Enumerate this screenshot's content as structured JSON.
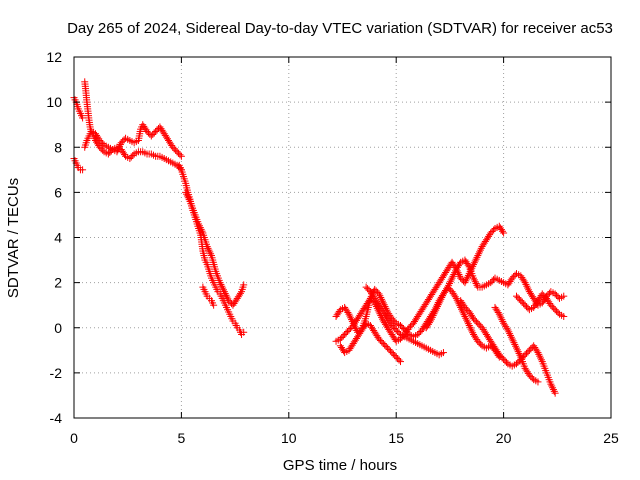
{
  "chart_data": {
    "type": "scatter",
    "title": "Day 265 of 2024, Sidereal Day-to-day VTEC variation (SDTVAR) for receiver ac53",
    "xlabel": "GPS time / hours",
    "ylabel": "SDTVAR / TECUs",
    "xlim": [
      0,
      25
    ],
    "ylim": [
      -4,
      12
    ],
    "xticks": [
      "0",
      "5",
      "10",
      "15",
      "20",
      "25"
    ],
    "yticks": [
      "-4",
      "-2",
      "0",
      "2",
      "4",
      "6",
      "8",
      "10",
      "12"
    ],
    "grid": true,
    "marker": "+",
    "series_color": "#ff0000",
    "segments": [
      {
        "x": [
          0.0,
          0.1,
          0.2,
          0.3,
          0.4
        ],
        "y": [
          10.2,
          10.0,
          9.7,
          9.5,
          9.3
        ]
      },
      {
        "x": [
          0.0,
          0.1,
          0.2,
          0.3,
          0.4
        ],
        "y": [
          7.5,
          7.3,
          7.1,
          7.0,
          7.0
        ]
      },
      {
        "x": [
          0.5,
          0.55,
          0.6,
          0.65,
          0.7,
          0.75,
          0.8,
          0.9,
          1.0,
          1.2,
          1.4,
          1.6,
          1.8,
          2.0,
          2.2,
          2.4,
          2.6,
          2.8,
          3.0,
          3.2,
          3.4,
          3.6,
          3.8,
          4.0,
          4.2,
          4.4,
          4.6,
          4.8,
          5.0
        ],
        "y": [
          10.9,
          10.5,
          10.0,
          9.6,
          9.2,
          8.9,
          8.7,
          8.5,
          8.3,
          8.0,
          7.8,
          7.7,
          7.9,
          8.0,
          7.9,
          7.6,
          7.5,
          7.7,
          7.8,
          7.8,
          7.7,
          7.7,
          7.6,
          7.6,
          7.5,
          7.4,
          7.3,
          7.2,
          7.0
        ]
      },
      {
        "x": [
          0.5,
          0.6,
          0.7,
          0.8,
          1.0,
          1.2,
          1.4,
          1.6,
          1.8,
          2.0,
          2.2,
          2.4,
          2.6,
          2.8,
          3.0,
          3.1,
          3.2,
          3.4,
          3.6,
          3.8,
          4.0,
          4.2,
          4.4,
          4.6,
          4.8,
          5.0
        ],
        "y": [
          8.0,
          8.3,
          8.5,
          8.7,
          8.6,
          8.3,
          8.1,
          8.0,
          7.9,
          7.8,
          8.2,
          8.4,
          8.3,
          8.2,
          8.3,
          8.8,
          9.0,
          8.7,
          8.5,
          8.7,
          8.9,
          8.6,
          8.3,
          8.0,
          7.8,
          7.6
        ]
      },
      {
        "x": [
          4.9,
          5.0,
          5.1,
          5.2,
          5.3,
          5.4,
          5.5,
          5.6,
          5.7,
          5.8,
          5.9,
          6.0,
          6.1,
          6.2,
          6.3,
          6.4,
          6.5,
          6.6,
          6.7,
          6.8,
          6.9,
          7.0,
          7.1,
          7.2,
          7.3,
          7.4,
          7.5,
          7.6,
          7.7,
          7.8,
          7.9
        ],
        "y": [
          7.2,
          7.0,
          6.7,
          6.4,
          6.0,
          5.7,
          5.3,
          5.0,
          4.7,
          4.4,
          4.1,
          3.4,
          3.0,
          2.8,
          2.5,
          2.2,
          2.0,
          1.8,
          1.6,
          1.5,
          1.3,
          1.1,
          0.9,
          0.7,
          0.5,
          0.3,
          0.2,
          0.0,
          -0.1,
          -0.3,
          -0.2
        ]
      },
      {
        "x": [
          5.2,
          5.4,
          5.6,
          5.8,
          6.0,
          6.2,
          6.4,
          6.6,
          6.8,
          7.0,
          7.2,
          7.4,
          7.6,
          7.8,
          7.9
        ],
        "y": [
          6.0,
          5.6,
          5.1,
          4.6,
          4.2,
          3.6,
          3.2,
          2.5,
          2.0,
          1.6,
          1.2,
          1.0,
          1.3,
          1.6,
          1.9
        ]
      },
      {
        "x": [
          6.0,
          6.1,
          6.2,
          6.3,
          6.4,
          6.5
        ],
        "y": [
          1.8,
          1.6,
          1.4,
          1.3,
          1.2,
          1.0
        ]
      },
      {
        "x": [
          12.2,
          12.4,
          12.6,
          12.8,
          13.0,
          13.2,
          13.4,
          13.6,
          13.8,
          14.0,
          14.2,
          14.4,
          14.6,
          14.8,
          15.0,
          15.2,
          15.4,
          15.6,
          15.8,
          16.0,
          16.2,
          16.4,
          16.6,
          16.8,
          17.0,
          17.2,
          17.4,
          17.6,
          17.8,
          18.0,
          18.2,
          18.4,
          18.6,
          18.8,
          19.0,
          19.2,
          19.4,
          19.6,
          19.8,
          20.0,
          20.2,
          20.4,
          20.6,
          20.8,
          21.0,
          21.2,
          21.4,
          21.6,
          21.8,
          22.0,
          22.2,
          22.4,
          22.6,
          22.8
        ],
        "y": [
          0.5,
          0.8,
          0.9,
          0.6,
          0.2,
          -0.2,
          -0.1,
          0.5,
          1.3,
          1.7,
          1.5,
          1.1,
          0.7,
          0.4,
          0.2,
          0.1,
          -0.1,
          -0.3,
          -0.4,
          -0.3,
          -0.1,
          0.2,
          0.5,
          0.8,
          1.2,
          1.5,
          1.8,
          2.2,
          2.6,
          2.9,
          3.0,
          2.7,
          2.2,
          1.8,
          1.8,
          1.9,
          2.0,
          2.2,
          2.1,
          2.0,
          1.9,
          2.2,
          2.4,
          2.3,
          2.0,
          1.6,
          1.3,
          1.0,
          1.1,
          1.4,
          1.6,
          1.5,
          1.3,
          1.4
        ]
      },
      {
        "x": [
          12.2,
          12.4,
          12.6,
          12.8,
          13.0,
          13.2,
          13.4,
          13.6,
          13.8,
          14.0,
          14.2,
          14.4,
          14.6,
          14.8,
          15.0,
          15.2,
          15.4,
          15.6,
          15.8,
          16.0,
          16.2,
          16.4,
          16.6,
          16.8,
          17.0,
          17.2,
          17.4,
          17.6,
          17.8,
          18.0,
          18.2,
          18.4,
          18.6,
          18.8,
          19.0,
          19.2,
          19.4,
          19.6,
          19.8,
          20.0
        ],
        "y": [
          -0.6,
          -0.5,
          -0.3,
          -0.1,
          0.1,
          0.4,
          0.7,
          1.0,
          1.3,
          1.1,
          0.7,
          0.3,
          0.0,
          -0.3,
          -0.6,
          -0.5,
          -0.3,
          0.0,
          0.2,
          0.5,
          0.8,
          1.1,
          1.4,
          1.7,
          2.0,
          2.3,
          2.6,
          2.9,
          2.6,
          2.2,
          2.0,
          2.4,
          2.8,
          3.2,
          3.6,
          3.9,
          4.2,
          4.4,
          4.5,
          4.2
        ]
      },
      {
        "x": [
          12.4,
          12.6,
          12.8,
          13.0,
          13.2,
          13.4,
          13.6,
          13.8,
          14.0,
          14.2,
          14.4,
          14.6,
          14.8,
          15.0,
          15.2
        ],
        "y": [
          -0.8,
          -1.1,
          -1.0,
          -0.7,
          -0.4,
          -0.1,
          0.2,
          0.1,
          -0.2,
          -0.5,
          -0.7,
          -0.9,
          -1.1,
          -1.3,
          -1.5
        ]
      },
      {
        "x": [
          13.6,
          13.8,
          14.0,
          14.2,
          14.4,
          14.6,
          14.8,
          15.0,
          15.2,
          15.4,
          15.6,
          15.8,
          16.0,
          16.2,
          16.4,
          16.6,
          16.8,
          17.0,
          17.2
        ],
        "y": [
          1.8,
          1.6,
          1.3,
          1.0,
          0.7,
          0.4,
          0.1,
          -0.1,
          -0.3,
          -0.4,
          -0.5,
          -0.6,
          -0.7,
          -0.8,
          -0.9,
          -1.0,
          -1.1,
          -1.2,
          -1.1
        ]
      },
      {
        "x": [
          16.4,
          16.6,
          16.8,
          17.0,
          17.2,
          17.4,
          17.6,
          17.8,
          18.0,
          18.2,
          18.4,
          18.6,
          18.8,
          19.0,
          19.2,
          19.4,
          19.6,
          19.8
        ],
        "y": [
          0.0,
          0.3,
          0.7,
          1.1,
          1.5,
          1.8,
          1.6,
          1.3,
          0.9,
          0.5,
          0.1,
          -0.3,
          -0.6,
          -0.8,
          -0.9,
          -0.8,
          -1.0,
          -1.3
        ]
      },
      {
        "x": [
          18.0,
          18.2,
          18.4,
          18.6,
          18.8,
          19.0,
          19.2,
          19.4,
          19.6,
          19.8,
          20.0,
          20.2,
          20.4,
          20.6,
          20.8,
          21.0,
          21.2,
          21.4,
          21.6,
          21.8,
          22.0,
          22.2,
          22.4
        ],
        "y": [
          1.2,
          0.9,
          0.7,
          0.4,
          0.2,
          0.0,
          -0.3,
          -0.6,
          -0.9,
          -1.2,
          -1.4,
          -1.6,
          -1.7,
          -1.6,
          -1.4,
          -1.2,
          -1.0,
          -0.8,
          -1.1,
          -1.5,
          -2.0,
          -2.5,
          -2.9
        ]
      },
      {
        "x": [
          19.6,
          19.8,
          20.0,
          20.2,
          20.4,
          20.6,
          20.8,
          21.0,
          21.2,
          21.4,
          21.6
        ],
        "y": [
          0.9,
          0.6,
          0.2,
          -0.1,
          -0.5,
          -0.9,
          -1.3,
          -1.8,
          -2.1,
          -2.3,
          -2.4
        ]
      },
      {
        "x": [
          20.6,
          20.8,
          21.0,
          21.2,
          21.4,
          21.6,
          21.8,
          22.0,
          22.2,
          22.4,
          22.6,
          22.8
        ],
        "y": [
          1.4,
          1.2,
          1.0,
          0.8,
          0.9,
          1.2,
          1.5,
          1.3,
          1.0,
          0.8,
          0.6,
          0.5
        ]
      }
    ]
  }
}
